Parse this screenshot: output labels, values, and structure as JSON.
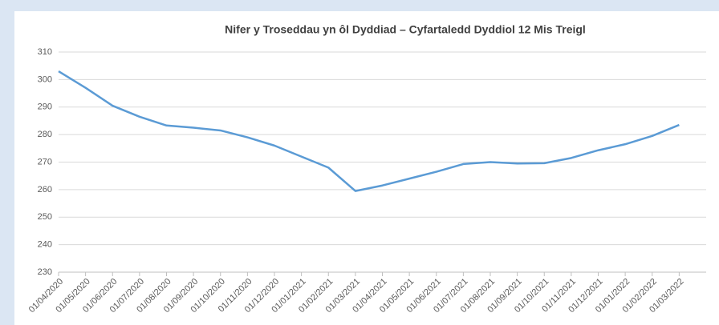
{
  "chart_data": {
    "type": "line",
    "title": "Nifer y Troseddau yn ôl Dyddiad – Cyfartaledd Dyddiol 12 Mis Treigl",
    "categories": [
      "01/04/2020",
      "01/05/2020",
      "01/06/2020",
      "01/07/2020",
      "01/08/2020",
      "01/09/2020",
      "01/10/2020",
      "01/11/2020",
      "01/12/2020",
      "01/01/2021",
      "01/02/2021",
      "01/03/2021",
      "01/04/2021",
      "01/05/2021",
      "01/06/2021",
      "01/07/2021",
      "01/08/2021",
      "01/09/2021",
      "01/10/2021",
      "01/11/2021",
      "01/12/2021",
      "01/01/2022",
      "01/02/2022",
      "01/03/2022"
    ],
    "series": [
      {
        "name": "Cyfartaledd Dyddiol 12 Mis Treigl",
        "color": "#5b9bd5",
        "values": [
          303,
          297,
          290.5,
          286.5,
          283.3,
          282.5,
          281.5,
          279,
          276,
          272,
          268,
          259.5,
          261.5,
          264,
          266.5,
          269.3,
          270,
          269.5,
          269.6,
          271.5,
          274.3,
          276.5,
          279.5,
          283.5
        ]
      }
    ],
    "ylim": [
      230,
      310
    ],
    "yticks": [
      230,
      240,
      250,
      260,
      270,
      280,
      290,
      300,
      310
    ],
    "grid": true
  }
}
